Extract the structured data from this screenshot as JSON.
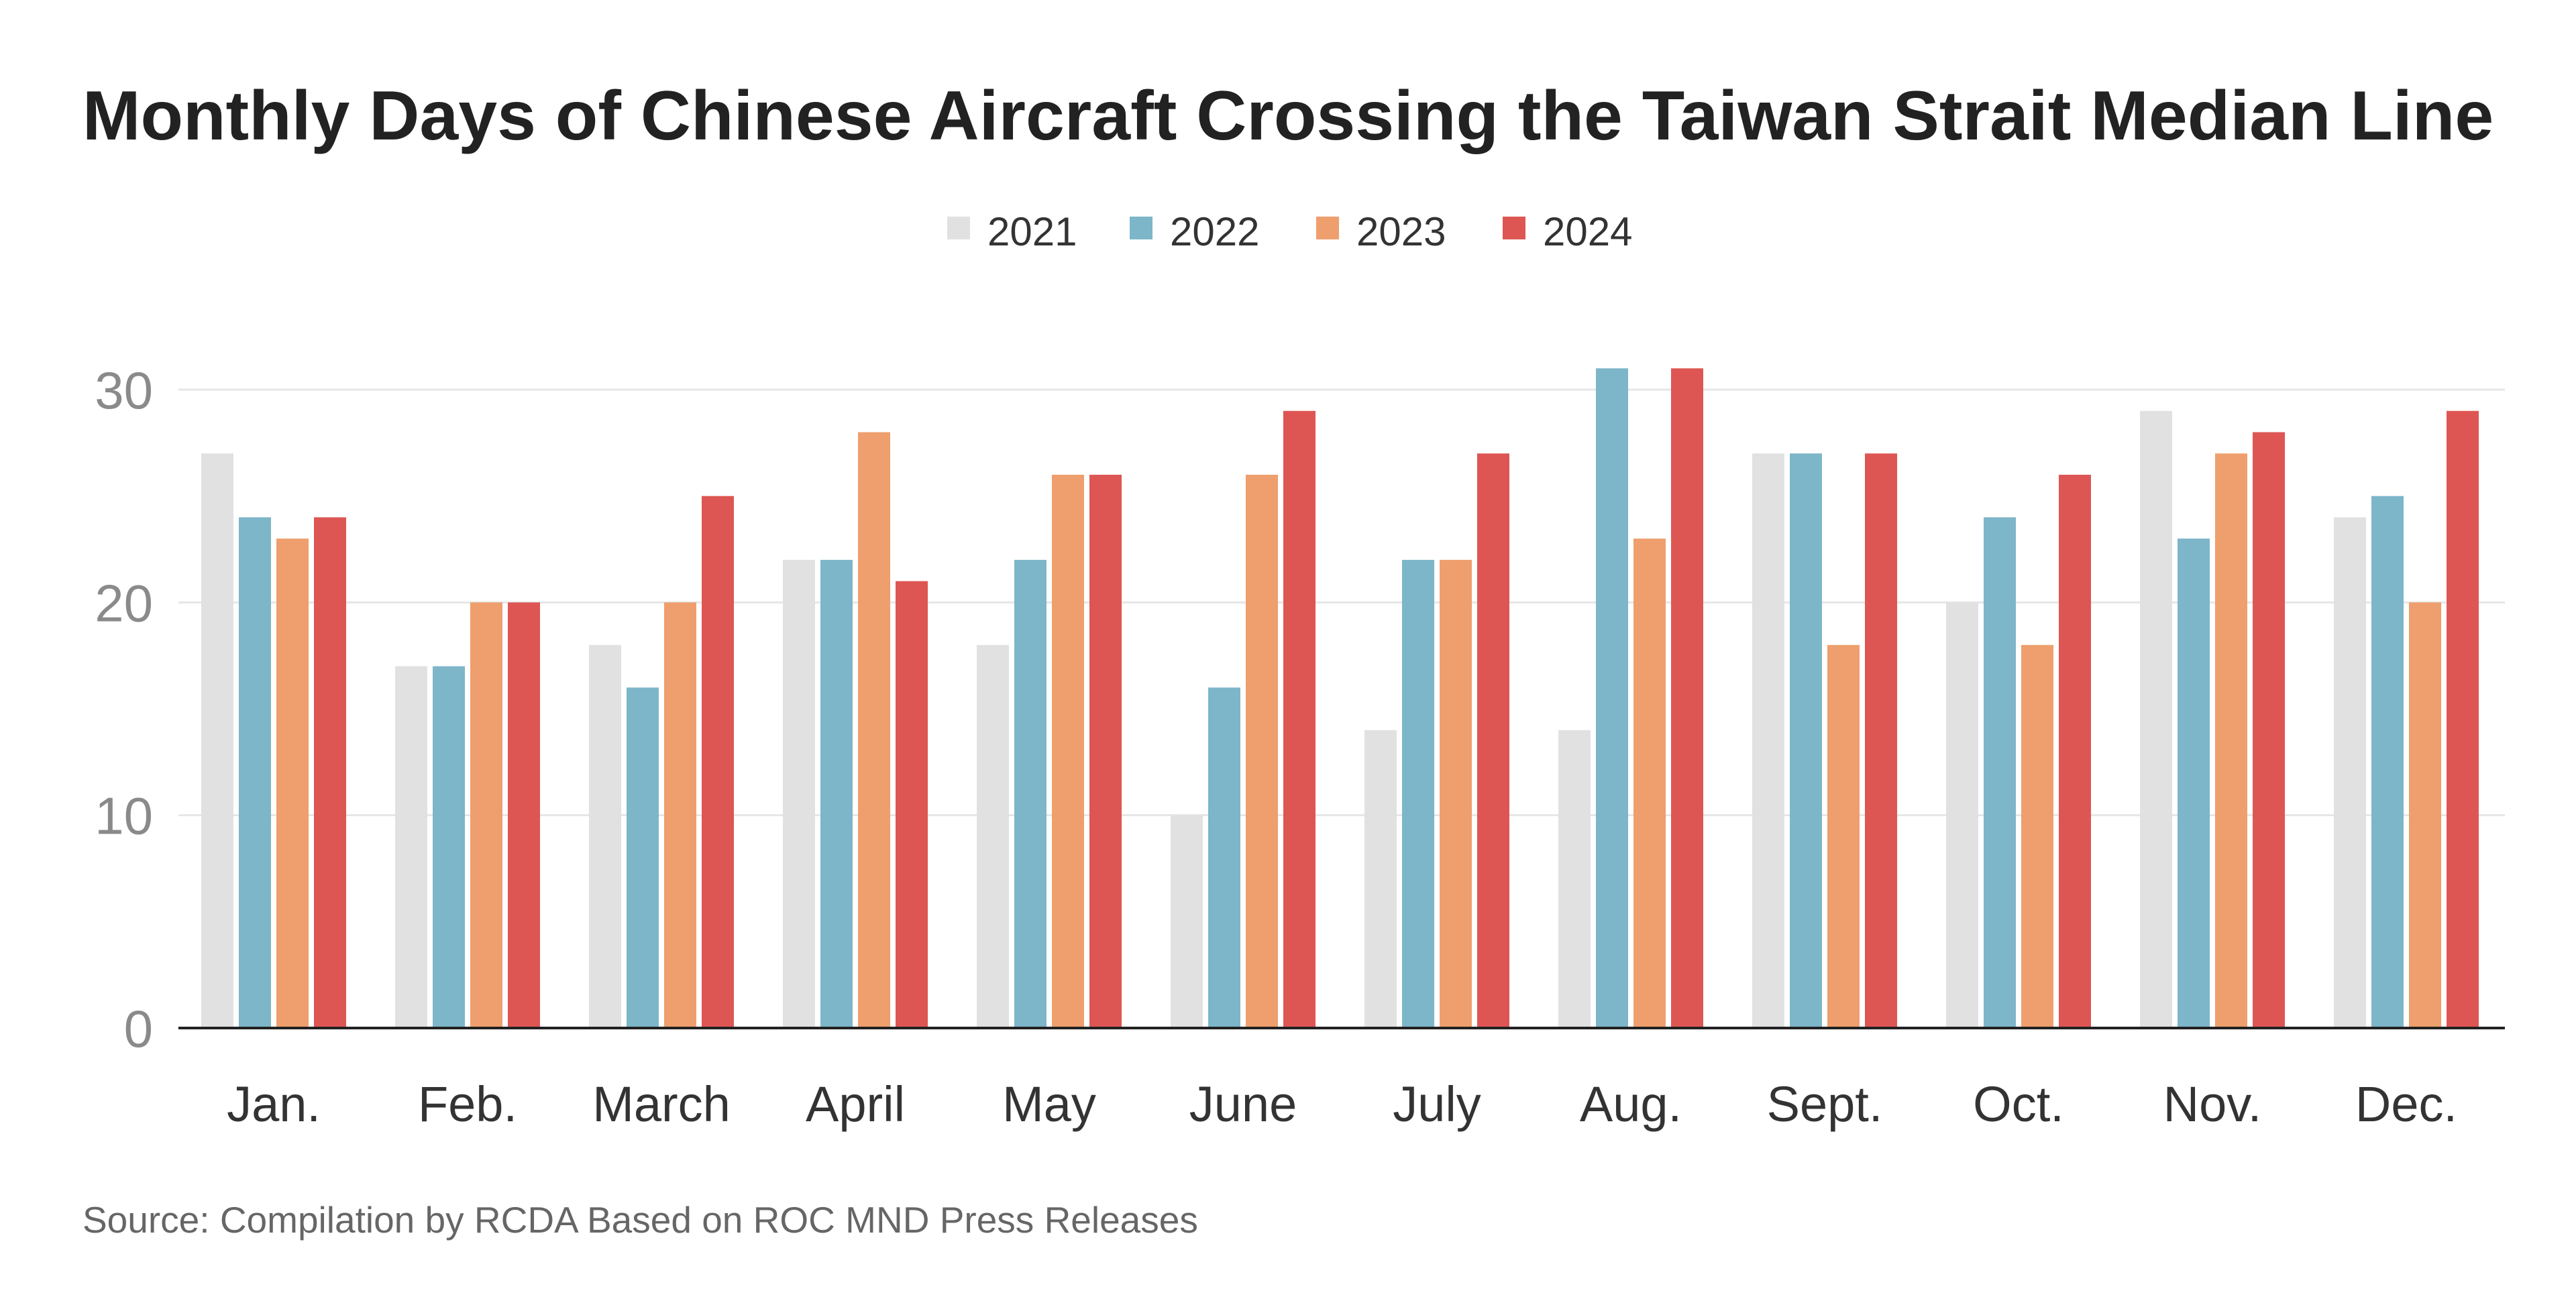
{
  "chart_data": {
    "type": "bar",
    "title": "Monthly Days of Chinese Aircraft Crossing the Taiwan Strait Median Line",
    "xlabel": "",
    "ylabel": "",
    "ylim": [
      0,
      31
    ],
    "yticks": [
      "0",
      "10",
      "20",
      "30"
    ],
    "grid": true,
    "legend_position": "top-center",
    "categories": [
      "Jan.",
      "Feb.",
      "March",
      "April",
      "May",
      "June",
      "July",
      "Aug.",
      "Sept.",
      "Oct.",
      "Nov.",
      "Dec."
    ],
    "series": [
      {
        "name": "2021",
        "color": "#e1e1e1",
        "values": [
          27,
          17,
          18,
          22,
          18,
          10,
          14,
          14,
          27,
          20,
          29,
          24
        ]
      },
      {
        "name": "2022",
        "color": "#7db5c9",
        "values": [
          24,
          17,
          16,
          22,
          22,
          16,
          22,
          31,
          27,
          24,
          23,
          25
        ]
      },
      {
        "name": "2023",
        "color": "#ee9f6d",
        "values": [
          23,
          20,
          20,
          28,
          26,
          26,
          22,
          23,
          18,
          18,
          27,
          20
        ]
      },
      {
        "name": "2024",
        "color": "#dd5653",
        "values": [
          24,
          20,
          25,
          21,
          26,
          29,
          27,
          31,
          27,
          26,
          28,
          29
        ]
      }
    ],
    "source": "Source: Compilation by RCDA Based on ROC MND Press Releases"
  }
}
